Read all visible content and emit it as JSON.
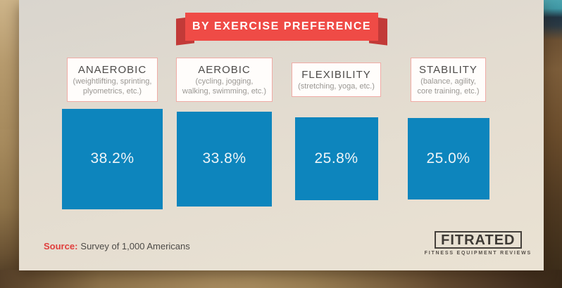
{
  "banner": {
    "label": "BY EXERCISE PREFERENCE"
  },
  "chart_data": {
    "type": "bar",
    "variant": "proportional-area-squares",
    "title": "BY EXERCISE PREFERENCE",
    "categories": [
      {
        "name": "ANAEROBIC",
        "description": "(weightlifting, sprinting,\nplyometrics, etc.)"
      },
      {
        "name": "AEROBIC",
        "description": "(cycling, jogging,\nwalking, swimming, etc.)"
      },
      {
        "name": "FLEXIBILITY",
        "description": "(stretching, yoga, etc.)"
      },
      {
        "name": "STABILITY",
        "description": "(balance, agility,\ncore training, etc.)"
      }
    ],
    "values": [
      38.2,
      33.8,
      25.8,
      25.0
    ],
    "labels": [
      "38.2%",
      "33.8%",
      "25.8%",
      "25.0%"
    ],
    "unit": "%",
    "source": "Survey of 1,000 Americans",
    "legend": "none",
    "colors": {
      "square": "#0d85bd",
      "ribbon": "#ef4b46"
    }
  },
  "source": {
    "label": "Source:",
    "text": "Survey of 1,000 Americans"
  },
  "logo": {
    "name": "FITRATED",
    "tagline": "FITNESS EQUIPMENT REVIEWS"
  },
  "colors": {
    "ribbon_red": "#ef4b46",
    "ribbon_fold": "#c23a38",
    "square_blue": "#0d85bd",
    "card_bg": "#e4ddd0",
    "box_border": "#f0aba5",
    "source_red": "#e03e3c"
  }
}
